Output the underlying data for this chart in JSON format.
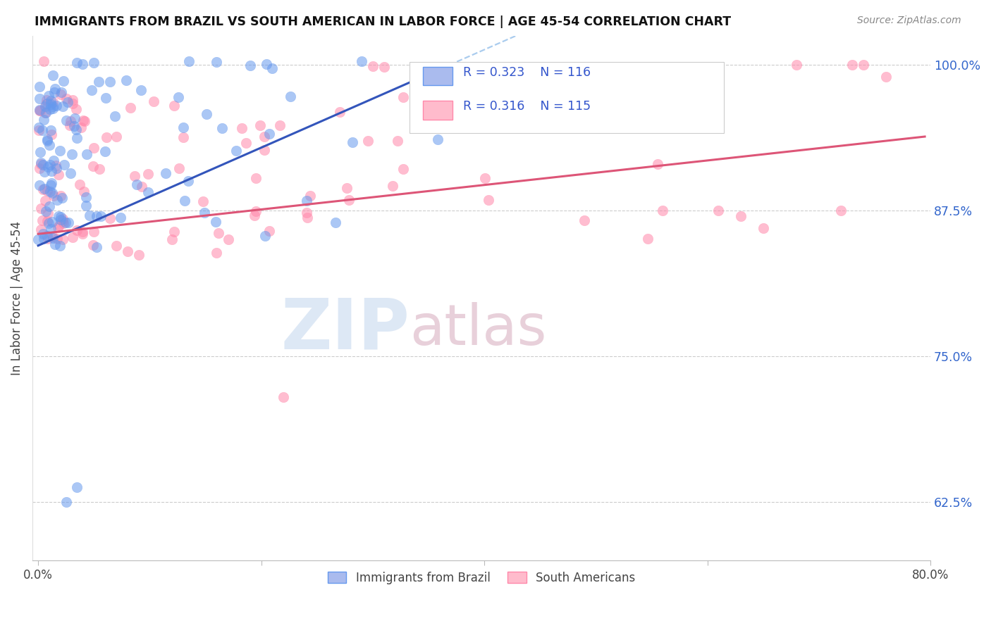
{
  "title": "IMMIGRANTS FROM BRAZIL VS SOUTH AMERICAN IN LABOR FORCE | AGE 45-54 CORRELATION CHART",
  "source": "Source: ZipAtlas.com",
  "ylabel_label": "In Labor Force | Age 45-54",
  "legend_brazil": "Immigrants from Brazil",
  "legend_south": "South Americans",
  "color_brazil": "#6699ee",
  "color_south": "#ff88aa",
  "color_trend_brazil": "#3355bb",
  "color_trend_south": "#dd5577",
  "color_trend_brazil_dash": "#aaccee",
  "background_color": "#ffffff",
  "watermark_color": "#dde8f5",
  "watermark_color2": "#e8d0da",
  "xlim": [
    -0.005,
    0.8
  ],
  "ylim": [
    0.575,
    1.025
  ],
  "yticks": [
    0.625,
    0.75,
    0.875,
    1.0
  ],
  "ytick_labels": [
    "62.5%",
    "75.0%",
    "87.5%",
    "100.0%"
  ],
  "xtick_labels_show": [
    "0.0%",
    "80.0%"
  ],
  "brazil_trend_x0": 0.0,
  "brazil_trend_y0": 0.845,
  "brazil_trend_slope": 0.42,
  "brazil_trend_solid_end": 0.355,
  "south_trend_x0": 0.0,
  "south_trend_y0": 0.855,
  "south_trend_slope": 0.105,
  "south_trend_xend": 0.795
}
